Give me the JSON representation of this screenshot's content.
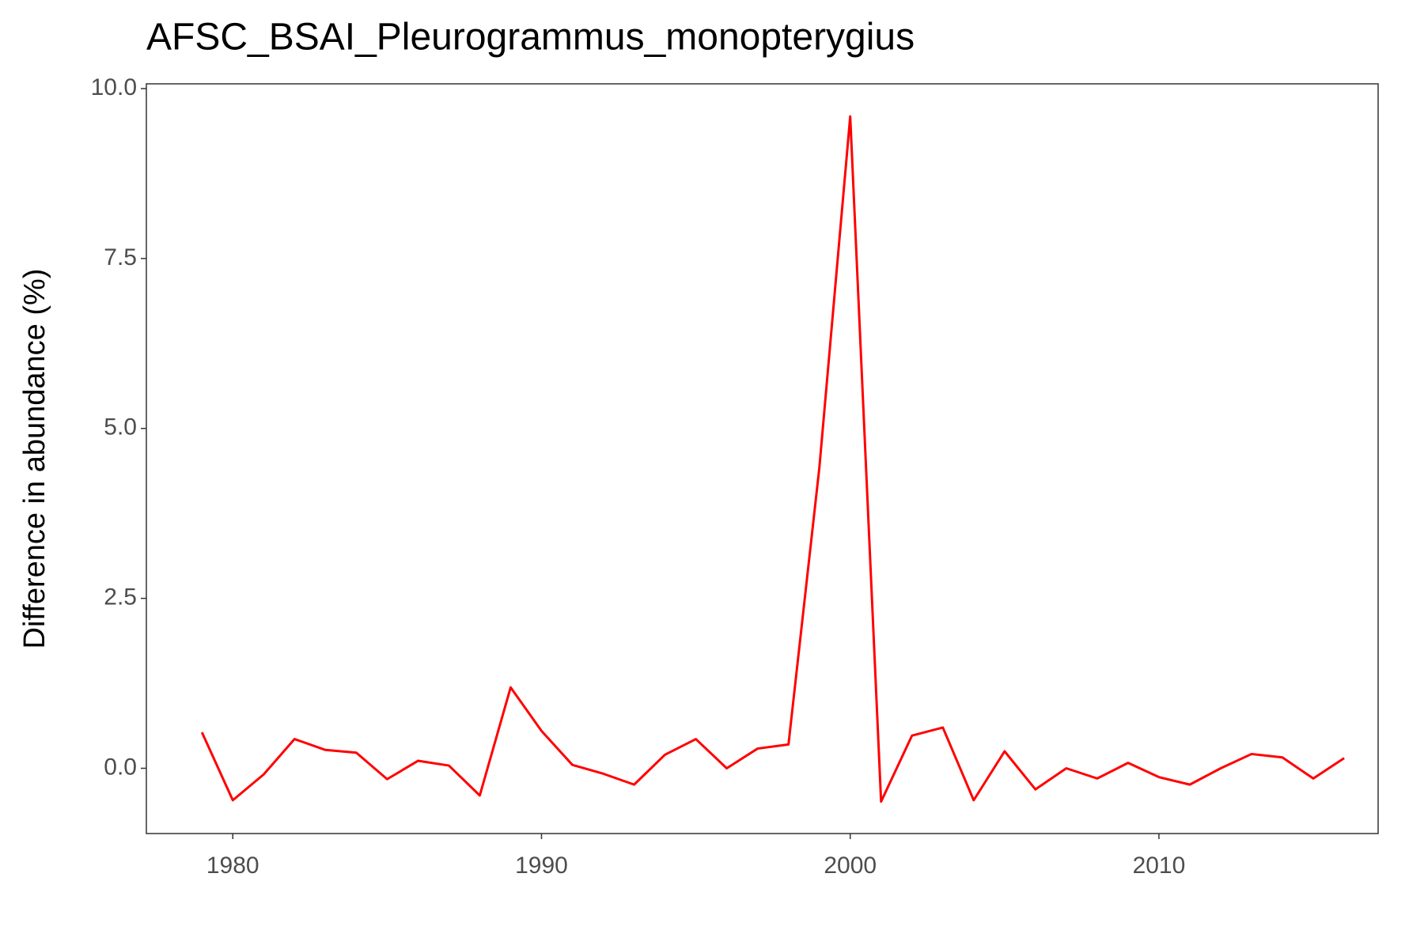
{
  "chart_data": {
    "type": "line",
    "title": "AFSC_BSAI_Pleurogrammus_monopterygius",
    "y_label": "Difference in abundance (%)",
    "x": [
      1979,
      1980,
      1981,
      1982,
      1983,
      1984,
      1985,
      1986,
      1987,
      1988,
      1989,
      1990,
      1991,
      1992,
      1993,
      1994,
      1995,
      1996,
      1997,
      1998,
      1999,
      2000,
      2001,
      2002,
      2003,
      2004,
      2005,
      2006,
      2007,
      2008,
      2009,
      2010,
      2011,
      2012,
      2013,
      2014,
      2015,
      2016
    ],
    "series": [
      {
        "color": "#ff0000",
        "values": [
          0.53,
          -0.47,
          -0.09,
          0.43,
          0.27,
          0.23,
          -0.16,
          0.11,
          0.04,
          -0.4,
          1.19,
          0.55,
          0.05,
          -0.08,
          -0.24,
          0.2,
          0.43,
          0.0,
          0.29,
          0.35,
          4.42,
          9.59,
          -0.49,
          0.48,
          0.6,
          -0.47,
          0.25,
          -0.31,
          0.0,
          -0.15,
          0.08,
          -0.13,
          -0.24,
          0.0,
          0.21,
          0.16,
          -0.15,
          0.15
        ]
      }
    ],
    "xlim": [
      1977.2,
      2017.1
    ],
    "ylim": [
      -0.96,
      10.07
    ],
    "xticks": [
      1980,
      1990,
      2000,
      2010
    ],
    "yticks": [
      {
        "value": 0,
        "label": "0.0"
      },
      {
        "value": 2.5,
        "label": "2.5"
      },
      {
        "value": 5,
        "label": "5.0"
      },
      {
        "value": 7.5,
        "label": "7.5"
      },
      {
        "value": 10,
        "label": "10.0"
      }
    ],
    "grid": false
  }
}
